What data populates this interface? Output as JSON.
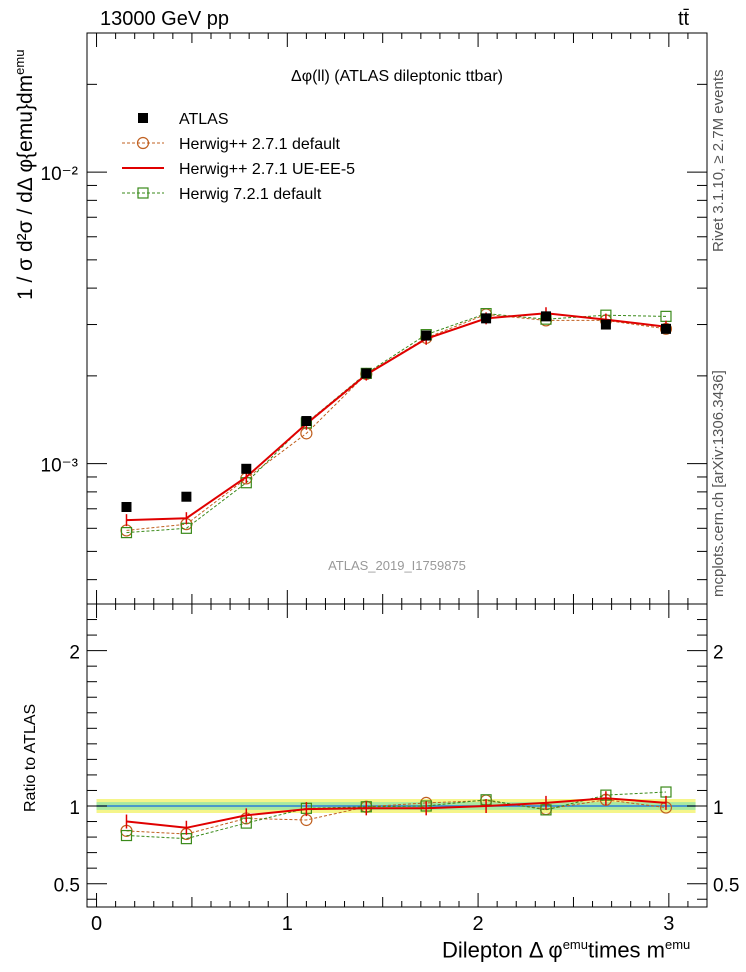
{
  "header": {
    "energy": "13000 GeV pp",
    "process": "tt̄",
    "title": "Δφ(ll) (ATLAS dileptonic ttbar)",
    "watermark": "ATLAS_2019_I1759875"
  },
  "side": {
    "rivet": "Rivet 3.1.10, ≥ 2.7M events",
    "mcplots": "mcplots.cern.ch [arXiv:1306.3436]"
  },
  "labels": {
    "y_main": "1 / σ d²σ / dΔ φ{emu}dm",
    "y_main_sup": "emu",
    "y_ratio": "Ratio to ATLAS",
    "x_pre": "Dilepton Δ φ",
    "x_sup1": "emu",
    "x_mid": "times m",
    "x_sup2": "emu"
  },
  "chart_data": {
    "type": "line",
    "x": [
      0.157,
      0.471,
      0.785,
      1.1,
      1.414,
      1.728,
      2.042,
      2.356,
      2.67,
      2.985
    ],
    "xlim": [
      -0.05,
      3.2
    ],
    "xticks": [
      "0",
      "1",
      "2",
      "3"
    ],
    "main": {
      "yscale": "log",
      "ylim": [
        0.00033,
        0.03
      ],
      "yticks": [
        "10⁻³",
        "10⁻²"
      ]
    },
    "ratio": {
      "ylim": [
        0.35,
        2.3
      ],
      "yticks": [
        "0.5",
        "1",
        "2"
      ],
      "band_inner_halfwidth": 0.025,
      "band_outer_halfwidth": 0.045
    },
    "series": [
      {
        "name": "ATLAS",
        "style": "data",
        "color": "#000000",
        "values": [
          0.00071,
          0.00077,
          0.00096,
          0.0014,
          0.00204,
          0.00275,
          0.00315,
          0.0032,
          0.003,
          0.0029
        ]
      },
      {
        "name": "Herwig++ 2.7.1 default",
        "style": "circle",
        "color": "#c06020",
        "values": [
          0.00059,
          0.00062,
          0.00089,
          0.00127,
          0.00203,
          0.0027,
          0.00325,
          0.0031,
          0.0031,
          0.0029
        ],
        "ratio": [
          0.84,
          0.82,
          0.92,
          0.91,
          0.995,
          1.02,
          1.035,
          0.98,
          1.04,
          0.99
        ]
      },
      {
        "name": "Herwig++ 2.7.1 UE-EE-5",
        "style": "line",
        "color": "#e00000",
        "values": [
          0.00064,
          0.00065,
          0.0009,
          0.00137,
          0.00202,
          0.00268,
          0.00315,
          0.00328,
          0.00312,
          0.00295
        ],
        "ratio": [
          0.9,
          0.86,
          0.94,
          0.98,
          0.985,
          0.985,
          1.0,
          1.02,
          1.05,
          1.02
        ]
      },
      {
        "name": "Herwig 7.2.1 default",
        "style": "square",
        "color": "#3a8a1a",
        "values": [
          0.00058,
          0.0006,
          0.00086,
          0.00138,
          0.00204,
          0.00277,
          0.00327,
          0.00313,
          0.00323,
          0.0032
        ],
        "ratio": [
          0.81,
          0.79,
          0.89,
          0.985,
          0.995,
          1.0,
          1.04,
          0.975,
          1.07,
          1.09
        ]
      }
    ]
  }
}
